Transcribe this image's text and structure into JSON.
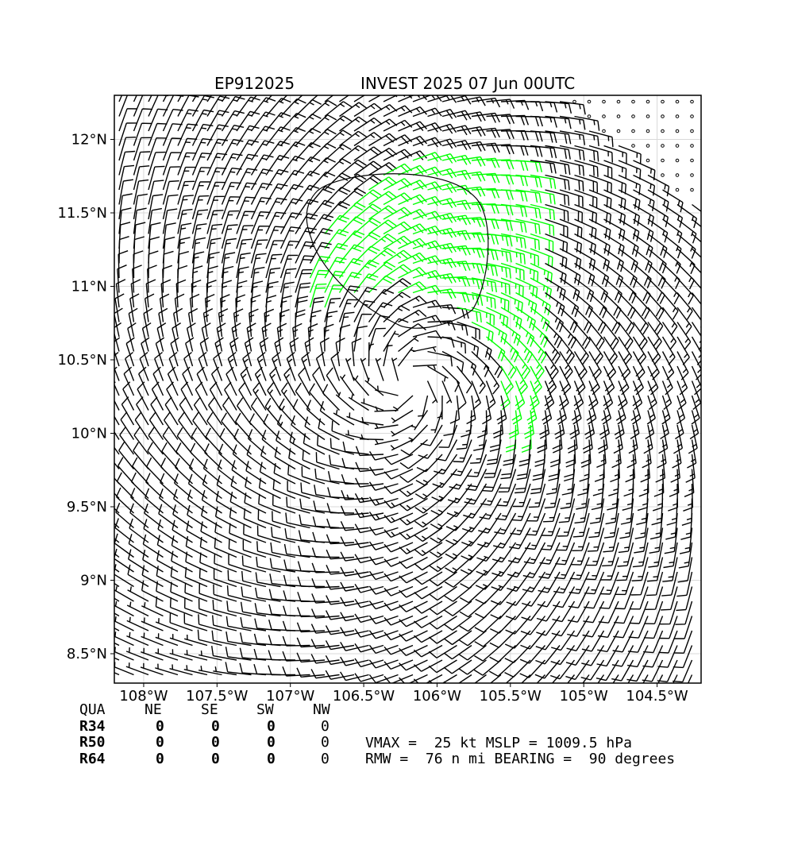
{
  "chart_data": {
    "type": "wind_barb_map",
    "title_left": "EP912025",
    "title_right": "INVEST 2025 07 Jun 00UTC",
    "x_tick_labels": [
      "108°W",
      "107.5°W",
      "107°W",
      "106.5°W",
      "106°W",
      "105.5°W",
      "105°W",
      "104.5°W"
    ],
    "x_ticks": [
      -108,
      -107.5,
      -107,
      -106.5,
      -106,
      -105.5,
      -105,
      -104.5
    ],
    "y_tick_labels": [
      "12°N",
      "11.5°N",
      "11°N",
      "10.5°N",
      "10°N",
      "9.5°N",
      "9°N",
      "8.5°N"
    ],
    "y_ticks": [
      12,
      11.5,
      11,
      10.5,
      10,
      9.5,
      9,
      8.5
    ],
    "xlim": [
      -108.2,
      -104.2
    ],
    "ylim": [
      8.3,
      12.3
    ],
    "grid": true,
    "center": {
      "lon": -106.2,
      "lat": 10.35
    },
    "vmax_kt": 25,
    "rmw_nmi": 76,
    "colors": {
      "barb": "#000000",
      "high_wind_barb": "#00ff00",
      "grid": "#d9d9d9"
    }
  },
  "table": {
    "header": [
      "QUA",
      "NE",
      "SE",
      "SW",
      "NW"
    ],
    "rows": [
      {
        "label": "R34",
        "values": [
          "0",
          "0",
          "0",
          "0"
        ]
      },
      {
        "label": "R50",
        "values": [
          "0",
          "0",
          "0",
          "0"
        ]
      },
      {
        "label": "R64",
        "values": [
          "0",
          "0",
          "0",
          "0"
        ]
      }
    ]
  },
  "info": {
    "line1": "VMAX =  25 kt MSLP = 1009.5 hPa",
    "line2": "RMW =  76 n mi BEARING =  90 degrees"
  }
}
